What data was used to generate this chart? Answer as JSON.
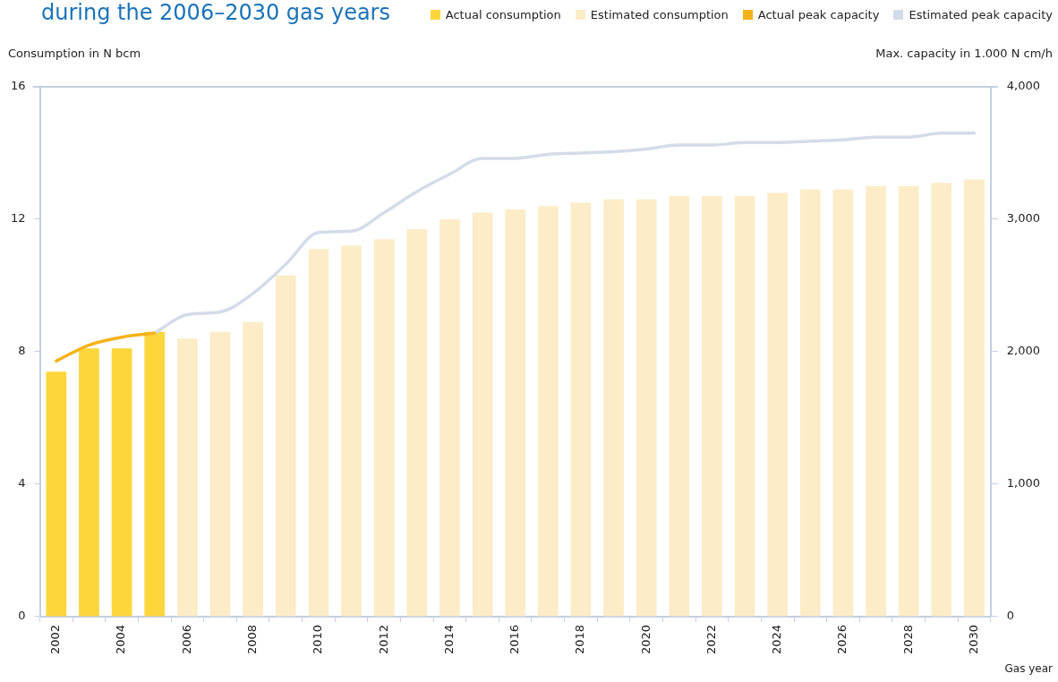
{
  "chart_data": {
    "type": "bar",
    "title": "during the 2006–2030 gas years",
    "ylabel": "Consumption in N bcm",
    "y2label": "Max. capacity in 1.000 N cm/h",
    "xlabel": "Gas year",
    "categories": [
      "2002",
      null,
      "2004",
      null,
      "2006",
      null,
      "2008",
      null,
      "2010",
      null,
      "2012",
      null,
      "2014",
      null,
      "2016",
      null,
      "2018",
      null,
      "2020",
      null,
      "2022",
      null,
      "2024",
      null,
      "2026",
      null,
      "2028",
      null,
      "2030"
    ],
    "series": [
      {
        "name": "Actual consumption",
        "color": "#fdd63b",
        "values": [
          7.4,
          8.1,
          8.1,
          8.6,
          null,
          null,
          null,
          null,
          null,
          null,
          null,
          null,
          null,
          null,
          null,
          null,
          null,
          null,
          null,
          null,
          null,
          null,
          null,
          null,
          null,
          null,
          null,
          null,
          null
        ]
      },
      {
        "name": "Estimated consumption",
        "color": "#fcecc8",
        "values": [
          null,
          null,
          null,
          null,
          8.4,
          8.6,
          8.9,
          10.3,
          11.1,
          11.2,
          11.4,
          11.7,
          12.0,
          12.2,
          12.3,
          12.4,
          12.5,
          12.6,
          12.6,
          12.7,
          12.7,
          12.7,
          12.8,
          12.9,
          12.9,
          13.0,
          13.0,
          13.1,
          13.2
        ]
      },
      {
        "name": "Actual peak capacity",
        "type": "line",
        "axis": "y2",
        "color": "#f5b21a",
        "values": [
          1930,
          2050,
          2110,
          2140,
          null,
          null,
          null,
          null,
          null,
          null,
          null,
          null,
          null,
          null,
          null,
          null,
          null,
          null,
          null,
          null,
          null,
          null,
          null,
          null,
          null,
          null,
          null,
          null,
          null
        ]
      },
      {
        "name": "Estimated peak capacity",
        "type": "line",
        "axis": "y2",
        "color": "#d3dce8",
        "values": [
          null,
          null,
          null,
          2140,
          2280,
          2300,
          2440,
          2660,
          2900,
          2910,
          3050,
          3210,
          3340,
          3460,
          3460,
          3490,
          3500,
          3510,
          3530,
          3560,
          3560,
          3580,
          3580,
          3590,
          3600,
          3620,
          3620,
          3650,
          3650
        ]
      }
    ],
    "ylim": [
      0,
      16
    ],
    "yticks": [
      0,
      4,
      8,
      12,
      16
    ],
    "y2lim": [
      0,
      4000
    ],
    "y2ticks": [
      {
        "value": 0,
        "label": "0"
      },
      {
        "value": 1000,
        "label": "1,000"
      },
      {
        "value": 2000,
        "label": "2,000"
      },
      {
        "value": 3000,
        "label": "3,000"
      },
      {
        "value": 4000,
        "label": "4,000"
      }
    ],
    "legend": "top right",
    "marker": "none",
    "line_style": "solid"
  }
}
